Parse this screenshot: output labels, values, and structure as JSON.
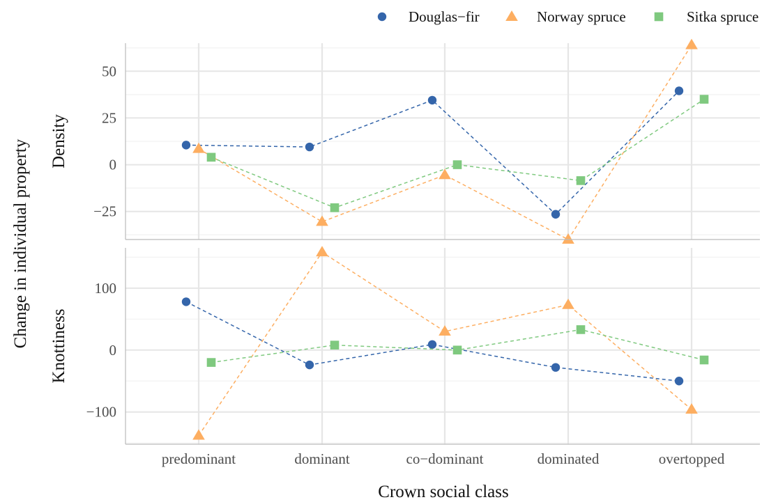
{
  "chart_data": {
    "type": "line",
    "categories": [
      "predominant",
      "dominant",
      "co−dominant",
      "dominated",
      "overtopped"
    ],
    "xlabel": "Crown social class",
    "ylabel": "Change in individual property",
    "legend": {
      "position": "top-right"
    },
    "grid": true,
    "series_styles": [
      {
        "name": "Douglas−fir",
        "color": "#3465AA",
        "marker": "circle"
      },
      {
        "name": "Norway spruce",
        "color": "#FDAE61",
        "marker": "triangle"
      },
      {
        "name": "Sitka spruce",
        "color": "#7FC97F",
        "marker": "square"
      }
    ],
    "panels": [
      {
        "label": "Density",
        "ylim": [
          -40,
          65
        ],
        "yticks": [
          -25,
          0,
          25,
          50
        ],
        "ytick_labels": [
          "−25",
          "0",
          "25",
          "50"
        ],
        "series": [
          {
            "name": "Douglas−fir",
            "values": [
              10.5,
              9.5,
              34.5,
              -26.5,
              39.5
            ]
          },
          {
            "name": "Norway spruce",
            "values": [
              8.5,
              -30.5,
              -5.5,
              -40,
              64
            ]
          },
          {
            "name": "Sitka spruce",
            "values": [
              4,
              -23,
              0,
              -8.5,
              35
            ]
          }
        ]
      },
      {
        "label": "Knottiness",
        "ylim": [
          -152,
          165
        ],
        "yticks": [
          -100,
          0,
          100
        ],
        "ytick_labels": [
          "−100",
          "0",
          "100"
        ],
        "series": [
          {
            "name": "Douglas−fir",
            "values": [
              78,
              -24,
              9,
              -28,
              -50
            ]
          },
          {
            "name": "Norway spruce",
            "values": [
              -138,
              158,
              30,
              73,
              -96
            ]
          },
          {
            "name": "Sitka spruce",
            "values": [
              -20,
              8,
              0,
              33,
              -16
            ]
          }
        ]
      }
    ]
  }
}
